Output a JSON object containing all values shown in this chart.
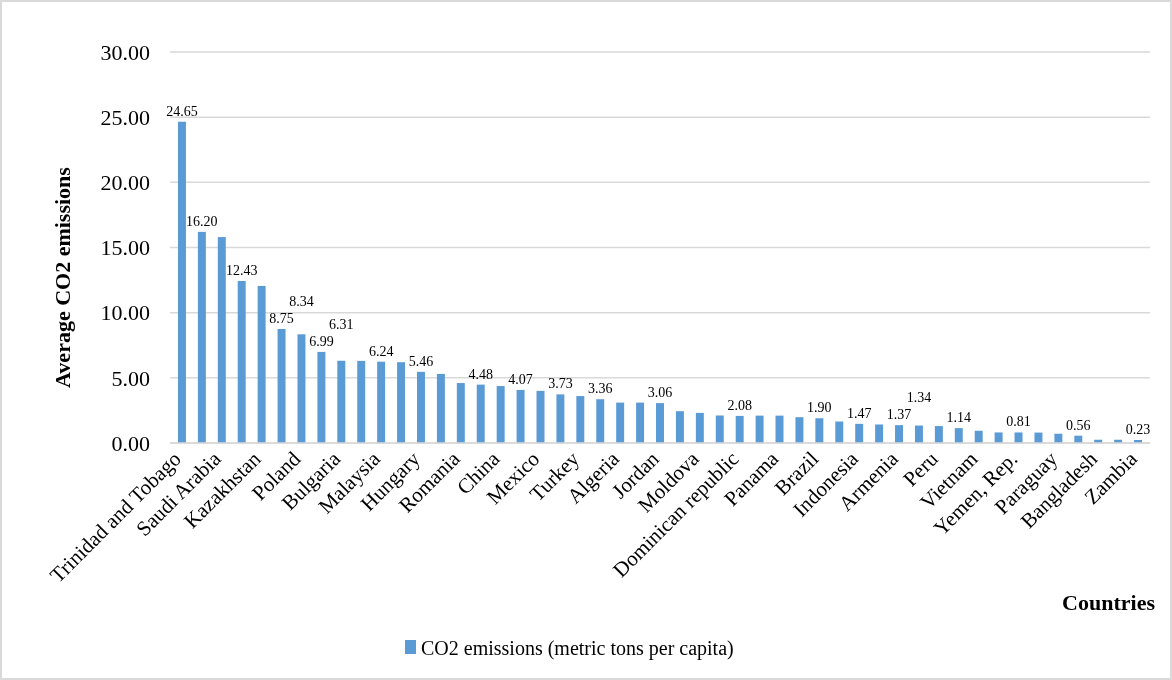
{
  "chart_data": {
    "type": "bar",
    "xlabel": "Countries",
    "ylabel": "Average CO2 emissions",
    "categories": [
      "Trinidad and Tobago",
      null,
      "Saudi Arabia",
      null,
      "Kazakhstan",
      null,
      "Poland",
      null,
      "Bulgaria",
      null,
      "Malaysia",
      null,
      "Hungary",
      null,
      "Romania",
      null,
      "China",
      null,
      "Mexico",
      null,
      "Turkey",
      null,
      "Algeria",
      null,
      "Jordan",
      null,
      "Moldova",
      null,
      "Dominican republic",
      null,
      "Panama",
      null,
      "Brazil",
      null,
      "Indonesia",
      null,
      "Armenia",
      null,
      "Peru",
      null,
      "Vietnam",
      null,
      "Yemen, Rep.",
      null,
      "Paraguay",
      null,
      "Bangladesh",
      null,
      "Zambia"
    ],
    "series": [
      {
        "name": "CO2 emissions (metric tons per capita)",
        "color": "#5b9bd5",
        "values": [
          24.65,
          16.2,
          15.8,
          12.43,
          12.05,
          8.75,
          8.34,
          6.99,
          6.31,
          6.3,
          6.24,
          6.2,
          5.46,
          5.3,
          4.6,
          4.48,
          4.37,
          4.07,
          4.0,
          3.73,
          3.6,
          3.36,
          3.1,
          3.1,
          3.06,
          2.44,
          2.31,
          2.11,
          2.08,
          2.1,
          2.1,
          1.98,
          1.9,
          1.65,
          1.47,
          1.42,
          1.37,
          1.34,
          1.3,
          1.14,
          0.94,
          0.81,
          0.81,
          0.8,
          0.71,
          0.56,
          0.25,
          0.25,
          0.23
        ],
        "value_labels": [
          "24.65",
          "16.20",
          null,
          "12.43",
          null,
          "8.75",
          "8.34",
          "6.99",
          "6.31",
          null,
          "6.24",
          null,
          "5.46",
          null,
          null,
          "4.48",
          null,
          "4.07",
          null,
          "3.73",
          null,
          "3.36",
          null,
          null,
          "3.06",
          null,
          null,
          null,
          "2.08",
          null,
          null,
          null,
          "1.90",
          null,
          "1.47",
          null,
          "1.37",
          "1.34",
          null,
          "1.14",
          null,
          null,
          "0.81",
          null,
          null,
          "0.56",
          null,
          null,
          "0.23"
        ]
      }
    ],
    "ylim": [
      0,
      30
    ],
    "yticks": [
      {
        "value": 0,
        "label": "0.00"
      },
      {
        "value": 5,
        "label": "5.00"
      },
      {
        "value": 10,
        "label": "10.00"
      },
      {
        "value": 15,
        "label": "15.00"
      },
      {
        "value": 20,
        "label": "20.00"
      },
      {
        "value": 25,
        "label": "25.00"
      },
      {
        "value": 30,
        "label": "30.00"
      }
    ],
    "grid": "y",
    "legend": "bottom"
  }
}
